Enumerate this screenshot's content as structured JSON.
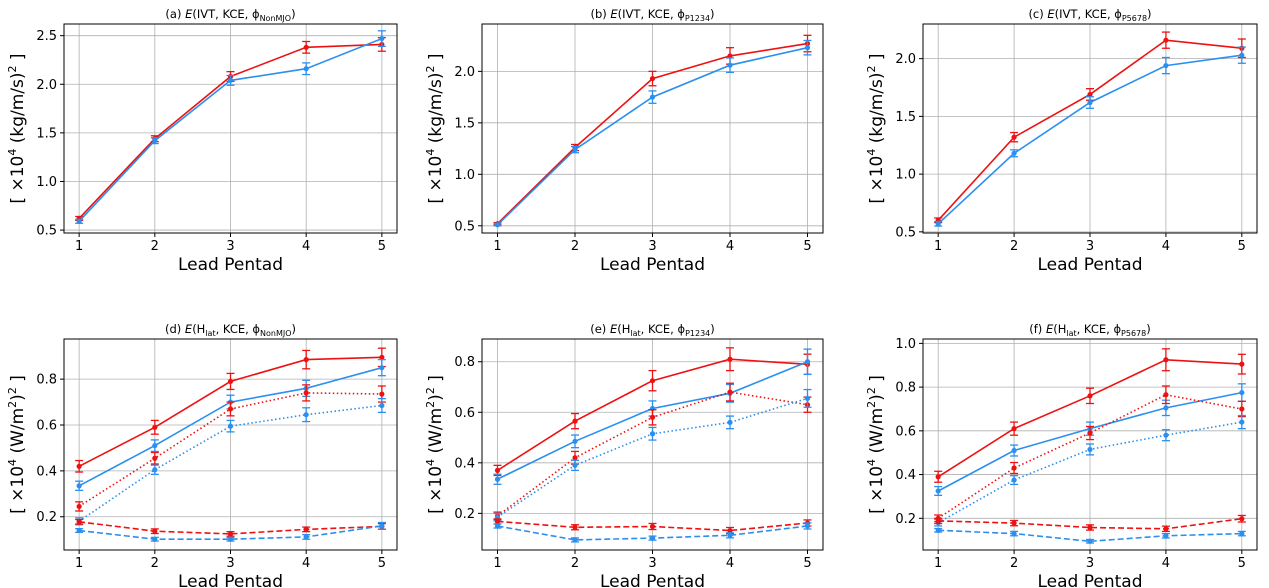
{
  "colors": {
    "red": "#ee1111",
    "blue": "#2b8fef",
    "grid": "#b0b0b0",
    "axis": "#000000"
  },
  "chart_data": [
    {
      "type": "line",
      "panel": "a",
      "title": "(a)  E(IVT, KCE, ϕNonMJO)",
      "title_parts": {
        "label": "(a)",
        "head": "E(IVT, KCE, ϕ",
        "sub": "NonMJO",
        "tail": ")"
      },
      "ylabel_parts": {
        "pre": "[ ×10",
        "exp": "4",
        "mid": " (kg/m/s)",
        "exp2": "2",
        "post": " ]"
      },
      "xlabel": "Lead Pentad",
      "x": [
        1,
        2,
        3,
        4,
        5
      ],
      "xlim": [
        0.8,
        5.2
      ],
      "ylim": [
        0.47,
        2.62
      ],
      "yticks": [
        "0.5",
        "1.0",
        "1.5",
        "2.0",
        "2.5"
      ],
      "xticks": [
        "1",
        "2",
        "3",
        "4",
        "5"
      ],
      "grid": true,
      "series": [
        {
          "color": "red",
          "style": "solid",
          "values": [
            0.62,
            1.44,
            2.08,
            2.38,
            2.41
          ],
          "errors": [
            0.02,
            0.03,
            0.05,
            0.06,
            0.07
          ]
        },
        {
          "color": "blue",
          "style": "solid",
          "values": [
            0.59,
            1.42,
            2.04,
            2.16,
            2.47
          ],
          "errors": [
            0.02,
            0.03,
            0.05,
            0.06,
            0.08
          ]
        }
      ]
    },
    {
      "type": "line",
      "panel": "b",
      "title": "(b)  E(IVT, KCE, ϕP1234)",
      "title_parts": {
        "label": "(b)",
        "head": "E(IVT, KCE, ϕ",
        "sub": "P1234",
        "tail": ")"
      },
      "ylabel_parts": {
        "pre": "[ ×10",
        "exp": "4",
        "mid": " (kg/m/s)",
        "exp2": "2",
        "post": " ]"
      },
      "xlabel": "Lead Pentad",
      "x": [
        1,
        2,
        3,
        4,
        5
      ],
      "xlim": [
        0.8,
        5.2
      ],
      "ylim": [
        0.43,
        2.46
      ],
      "yticks": [
        "0.5",
        "1.0",
        "1.5",
        "2.0"
      ],
      "xticks": [
        "1",
        "2",
        "3",
        "4",
        "5"
      ],
      "grid": true,
      "series": [
        {
          "color": "red",
          "style": "solid",
          "values": [
            0.52,
            1.26,
            1.93,
            2.15,
            2.27
          ],
          "errors": [
            0.01,
            0.03,
            0.07,
            0.08,
            0.08
          ]
        },
        {
          "color": "blue",
          "style": "solid",
          "values": [
            0.51,
            1.24,
            1.75,
            2.06,
            2.23
          ],
          "errors": [
            0.01,
            0.03,
            0.06,
            0.07,
            0.07
          ]
        }
      ]
    },
    {
      "type": "line",
      "panel": "c",
      "title": "(c)  E(IVT, KCE, ϕP5678)",
      "title_parts": {
        "label": "(c)",
        "head": "E(IVT, KCE, ϕ",
        "sub": "P5678",
        "tail": ")"
      },
      "ylabel_parts": {
        "pre": "[ ×10",
        "exp": "4",
        "mid": " (kg/m/s)",
        "exp2": "2",
        "post": " ]"
      },
      "xlabel": "Lead Pentad",
      "x": [
        1,
        2,
        3,
        4,
        5
      ],
      "xlim": [
        0.8,
        5.2
      ],
      "ylim": [
        0.49,
        2.3
      ],
      "yticks": [
        "0.5",
        "1.0",
        "1.5",
        "2.0"
      ],
      "xticks": [
        "1",
        "2",
        "3",
        "4",
        "5"
      ],
      "grid": true,
      "series": [
        {
          "color": "red",
          "style": "solid",
          "values": [
            0.6,
            1.32,
            1.69,
            2.16,
            2.09
          ],
          "errors": [
            0.02,
            0.04,
            0.05,
            0.07,
            0.08
          ]
        },
        {
          "color": "blue",
          "style": "solid",
          "values": [
            0.57,
            1.18,
            1.62,
            1.94,
            2.03
          ],
          "errors": [
            0.02,
            0.03,
            0.05,
            0.07,
            0.07
          ]
        }
      ]
    },
    {
      "type": "line",
      "panel": "d",
      "title": "(d)  E(Hlat, KCE, ϕNonMJO)",
      "title_parts": {
        "label": "(d)",
        "head": "E(H",
        "hsub": "lat",
        "mid": ", KCE, ϕ",
        "sub": "NonMJO",
        "tail": ")"
      },
      "ylabel_parts": {
        "pre": "[ ×10",
        "exp": "4",
        "mid": " (W/m",
        "exp_in": "2",
        "mid2": ")",
        "exp2": "2",
        "post": " ]"
      },
      "xlabel": "Lead Pentad",
      "x": [
        1,
        2,
        3,
        4,
        5
      ],
      "xlim": [
        0.8,
        5.2
      ],
      "ylim": [
        0.055,
        0.975
      ],
      "yticks": [
        "0.2",
        "0.4",
        "0.6",
        "0.8"
      ],
      "xticks": [
        "1",
        "2",
        "3",
        "4",
        "5"
      ],
      "grid": true,
      "series": [
        {
          "color": "red",
          "style": "solid",
          "values": [
            0.42,
            0.59,
            0.79,
            0.885,
            0.895
          ],
          "errors": [
            0.025,
            0.03,
            0.035,
            0.04,
            0.04
          ]
        },
        {
          "color": "blue",
          "style": "solid",
          "values": [
            0.335,
            0.51,
            0.7,
            0.76,
            0.85
          ],
          "errors": [
            0.02,
            0.025,
            0.03,
            0.035,
            0.035
          ]
        },
        {
          "color": "red",
          "style": "dotted",
          "values": [
            0.245,
            0.455,
            0.67,
            0.74,
            0.735
          ],
          "errors": [
            0.02,
            0.025,
            0.03,
            0.035,
            0.035
          ]
        },
        {
          "color": "blue",
          "style": "dotted",
          "values": [
            0.18,
            0.405,
            0.595,
            0.645,
            0.685
          ],
          "errors": [
            0.015,
            0.02,
            0.025,
            0.03,
            0.03
          ]
        },
        {
          "color": "red",
          "style": "dashed",
          "values": [
            0.178,
            0.137,
            0.125,
            0.145,
            0.158
          ],
          "errors": [
            0.01,
            0.01,
            0.01,
            0.01,
            0.012
          ]
        },
        {
          "color": "blue",
          "style": "dashed",
          "values": [
            0.14,
            0.102,
            0.102,
            0.112,
            0.16
          ],
          "errors": [
            0.008,
            0.008,
            0.008,
            0.01,
            0.015
          ]
        }
      ]
    },
    {
      "type": "line",
      "panel": "e",
      "title": "(e)  E(Hlat, KCE, ϕP1234)",
      "title_parts": {
        "label": "(e)",
        "head": "E(H",
        "hsub": "lat",
        "mid": ", KCE, ϕ",
        "sub": "P1234",
        "tail": ")"
      },
      "ylabel_parts": {
        "pre": "[ ×10",
        "exp": "4",
        "mid": " (W/m",
        "exp_in": "2",
        "mid2": ")",
        "exp2": "2",
        "post": " ]"
      },
      "xlabel": "Lead Pentad",
      "x": [
        1,
        2,
        3,
        4,
        5
      ],
      "xlim": [
        0.8,
        5.2
      ],
      "ylim": [
        0.055,
        0.89
      ],
      "yticks": [
        "0.2",
        "0.4",
        "0.6",
        "0.8"
      ],
      "xticks": [
        "1",
        "2",
        "3",
        "4",
        "5"
      ],
      "grid": true,
      "series": [
        {
          "color": "red",
          "style": "solid",
          "values": [
            0.37,
            0.565,
            0.725,
            0.81,
            0.79
          ],
          "errors": [
            0.02,
            0.03,
            0.04,
            0.045,
            0.04
          ]
        },
        {
          "color": "blue",
          "style": "solid",
          "values": [
            0.335,
            0.485,
            0.615,
            0.675,
            0.8
          ],
          "errors": [
            0.02,
            0.025,
            0.03,
            0.035,
            0.05
          ]
        },
        {
          "color": "red",
          "style": "dotted",
          "values": [
            0.19,
            0.42,
            0.58,
            0.68,
            0.63
          ],
          "errors": [
            0.015,
            0.025,
            0.03,
            0.035,
            0.03
          ]
        },
        {
          "color": "blue",
          "style": "dotted",
          "values": [
            0.185,
            0.39,
            0.515,
            0.56,
            0.655
          ],
          "errors": [
            0.015,
            0.02,
            0.025,
            0.025,
            0.035
          ]
        },
        {
          "color": "red",
          "style": "dashed",
          "values": [
            0.168,
            0.145,
            0.148,
            0.132,
            0.162
          ],
          "errors": [
            0.01,
            0.01,
            0.012,
            0.012,
            0.012
          ]
        },
        {
          "color": "blue",
          "style": "dashed",
          "values": [
            0.15,
            0.095,
            0.102,
            0.113,
            0.15
          ],
          "errors": [
            0.008,
            0.008,
            0.008,
            0.01,
            0.012
          ]
        }
      ]
    },
    {
      "type": "line",
      "panel": "f",
      "title": "(f)  E(Hlat, KCE, ϕP5678)",
      "title_parts": {
        "label": "(f)",
        "head": "E(H",
        "hsub": "lat",
        "mid": ", KCE, ϕ",
        "sub": "P5678",
        "tail": ")"
      },
      "ylabel_parts": {
        "pre": "[ ×10",
        "exp": "4",
        "mid": " (W/m",
        "exp_in": "2",
        "mid2": ")",
        "exp2": "2",
        "post": " ]"
      },
      "xlabel": "Lead Pentad",
      "x": [
        1,
        2,
        3,
        4,
        5
      ],
      "xlim": [
        0.8,
        5.2
      ],
      "ylim": [
        0.055,
        1.02
      ],
      "yticks": [
        "0.2",
        "0.4",
        "0.6",
        "0.8",
        "1.0"
      ],
      "xticks": [
        "1",
        "2",
        "3",
        "4",
        "5"
      ],
      "grid": true,
      "series": [
        {
          "color": "red",
          "style": "solid",
          "values": [
            0.39,
            0.61,
            0.76,
            0.925,
            0.905
          ],
          "errors": [
            0.025,
            0.03,
            0.035,
            0.05,
            0.045
          ]
        },
        {
          "color": "blue",
          "style": "solid",
          "values": [
            0.325,
            0.51,
            0.61,
            0.705,
            0.775
          ],
          "errors": [
            0.02,
            0.025,
            0.03,
            0.035,
            0.04
          ]
        },
        {
          "color": "red",
          "style": "dotted",
          "values": [
            0.2,
            0.43,
            0.59,
            0.765,
            0.7
          ],
          "errors": [
            0.015,
            0.025,
            0.03,
            0.04,
            0.035
          ]
        },
        {
          "color": "blue",
          "style": "dotted",
          "values": [
            0.18,
            0.375,
            0.515,
            0.58,
            0.64
          ],
          "errors": [
            0.015,
            0.02,
            0.025,
            0.025,
            0.03
          ]
        },
        {
          "color": "red",
          "style": "dashed",
          "values": [
            0.188,
            0.178,
            0.158,
            0.152,
            0.198
          ],
          "errors": [
            0.012,
            0.012,
            0.012,
            0.012,
            0.015
          ]
        },
        {
          "color": "blue",
          "style": "dashed",
          "values": [
            0.145,
            0.13,
            0.095,
            0.12,
            0.13
          ],
          "errors": [
            0.008,
            0.01,
            0.008,
            0.01,
            0.01
          ]
        }
      ]
    }
  ]
}
